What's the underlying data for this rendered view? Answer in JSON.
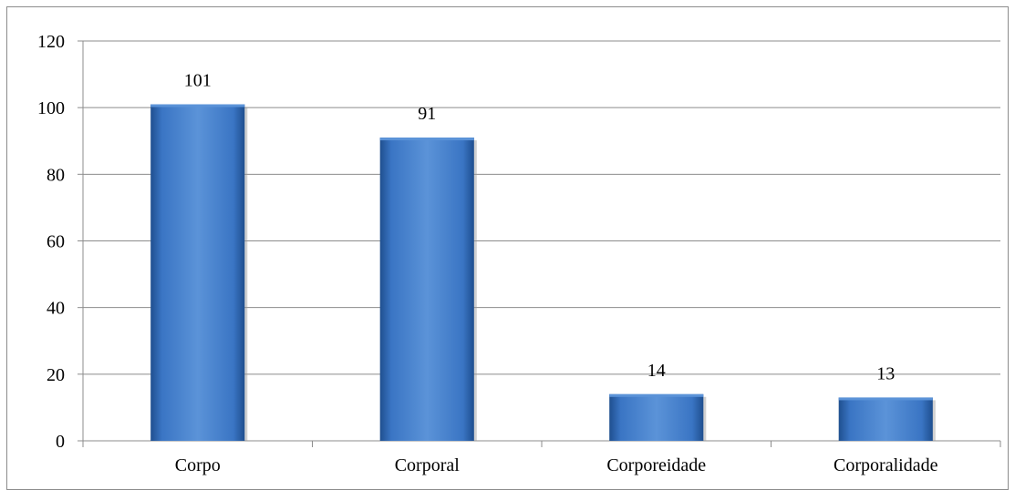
{
  "chart_data": {
    "type": "bar",
    "categories": [
      "Corpo",
      "Corporal",
      "Corporeidade",
      "Corporalidade"
    ],
    "values": [
      101,
      91,
      14,
      13
    ],
    "data_labels": [
      "101",
      "91",
      "14",
      "13"
    ],
    "title": "",
    "xlabel": "",
    "ylabel": "",
    "ylim": [
      0,
      120
    ],
    "yticks": [
      0,
      20,
      40,
      60,
      80,
      100,
      120
    ],
    "ytick_labels": [
      "0",
      "20",
      "40",
      "60",
      "80",
      "100",
      "120"
    ],
    "grid": true,
    "legend": "none",
    "colors": {
      "bar": "#3a75c4",
      "bar_light": "#5b93d8",
      "bar_dark": "#1f4f8f",
      "grid": "#8c8c8c",
      "axis": "#8c8c8c",
      "text": "#000000"
    }
  }
}
